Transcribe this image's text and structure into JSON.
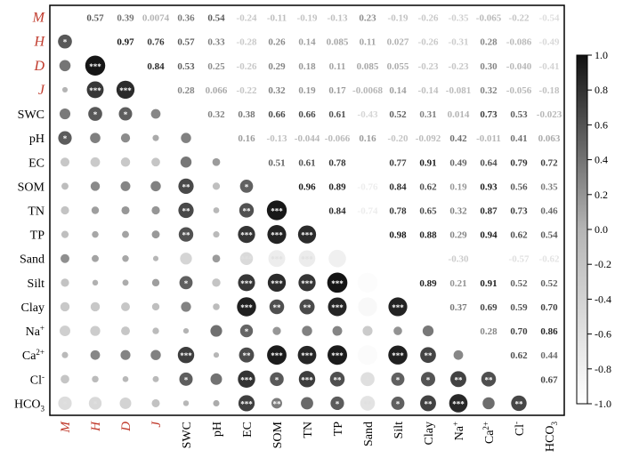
{
  "chart_data": {
    "type": "heatmap",
    "title": "",
    "xlabel": "",
    "ylabel": "",
    "variables": [
      "M",
      "H",
      "D",
      "J",
      "SWC",
      "pH",
      "EC",
      "SOM",
      "TN",
      "TP",
      "Sand",
      "Silt",
      "Clay",
      "Na+",
      "Ca2+",
      "Cl-",
      "HCO3"
    ],
    "highlight_variables": [
      "M",
      "H",
      "D",
      "J"
    ],
    "upper_triangle": "coefficients",
    "lower_triangle": "circles sized by correlation, stars mark significance",
    "coefficients_upper": [
      [
        "0.57",
        "0.39",
        "0.0074",
        "0.36",
        "0.54",
        "-0.24",
        "-0.11",
        "-0.19",
        "-0.13",
        "0.23",
        "-0.19",
        "-0.26",
        "-0.35",
        "-0.065",
        "-0.22",
        "-0.54"
      ],
      [
        "0.97",
        "0.76",
        "0.57",
        "0.33",
        "-0.28",
        "0.26",
        "0.14",
        "0.085",
        "0.11",
        "0.027",
        "-0.26",
        "-0.31",
        "0.28",
        "-0.086",
        "-0.49"
      ],
      [
        "0.84",
        "0.53",
        "0.25",
        "-0.26",
        "0.29",
        "0.18",
        "0.11",
        "0.085",
        "0.055",
        "-0.23",
        "-0.23",
        "0.30",
        "-0.040",
        "-0.41"
      ],
      [
        "0.28",
        "0.066",
        "-0.22",
        "0.32",
        "0.19",
        "0.17",
        "-0.0068",
        "0.14",
        "-0.14",
        "-0.081",
        "0.32",
        "-0.056",
        "-0.18"
      ],
      [
        "0.32",
        "0.38",
        "0.66",
        "0.66",
        "0.61",
        "-0.43",
        "0.52",
        "0.31",
        "0.014",
        "0.73",
        "0.53",
        "-0.023"
      ],
      [
        "0.16",
        "-0.13",
        "-0.044",
        "-0.066",
        "0.16",
        "-0.20",
        "-0.092",
        "0.42",
        "-0.011",
        "0.41",
        "0.063"
      ],
      [
        "0.51",
        "0.61",
        "0.78",
        "",
        "0.77",
        "0.91",
        "0.49",
        "0.64",
        "0.79",
        "0.72"
      ],
      [
        "0.96",
        "0.89",
        "-0.76",
        "0.84",
        "0.62",
        "0.19",
        "0.93",
        "0.56",
        "0.35"
      ],
      [
        "0.84",
        "-0.74",
        "0.78",
        "0.65",
        "0.32",
        "0.87",
        "0.73",
        "0.46"
      ],
      [
        "",
        "0.98",
        "0.88",
        "0.29",
        "0.94",
        "0.62",
        "0.54"
      ],
      [
        "",
        "",
        "-0.30",
        "",
        "-0.57",
        "-0.62"
      ],
      [
        "0.89",
        "0.21",
        "0.91",
        "0.52",
        "0.52"
      ],
      [
        "0.37",
        "0.69",
        "0.59",
        "0.70"
      ],
      [
        "0.28",
        "0.70",
        "0.86"
      ],
      [
        "0.62",
        "0.44"
      ],
      [
        "0.67"
      ]
    ],
    "significance_lower": [
      [],
      [
        "*"
      ],
      [
        "",
        "***"
      ],
      [
        "",
        "***",
        "***"
      ],
      [
        "",
        "*",
        "*",
        ""
      ],
      [
        "*",
        "",
        "",
        "",
        ""
      ],
      [
        "",
        "",
        "",
        "",
        "",
        ""
      ],
      [
        "",
        "",
        "",
        "",
        "**",
        "",
        "*"
      ],
      [
        "",
        "",
        "",
        "",
        "**",
        "",
        "**",
        "***"
      ],
      [
        "",
        "",
        "",
        "",
        "**",
        "",
        "***",
        "***",
        "***"
      ],
      [
        "",
        "",
        "",
        "",
        "",
        "",
        "***",
        "***",
        "***",
        ""
      ],
      [
        "",
        "",
        "",
        "",
        "*",
        "",
        "***",
        "***",
        "***",
        "***",
        ""
      ],
      [
        "",
        "",
        "",
        "",
        "",
        "",
        "***",
        "**",
        "**",
        "***",
        "",
        "***"
      ],
      [
        "",
        "",
        "",
        "",
        "",
        "",
        "*",
        "",
        "",
        "",
        "",
        "",
        ""
      ],
      [
        "",
        "",
        "",
        "",
        "***",
        "",
        "**",
        "***",
        "***",
        "***",
        "",
        "***",
        "**",
        ""
      ],
      [
        "",
        "",
        "",
        "",
        "*",
        "",
        "***",
        "*",
        "***",
        "**",
        "*",
        "*",
        "*",
        "**",
        "**"
      ],
      [
        "*",
        "*",
        "",
        "",
        "",
        "",
        "***",
        "**",
        "",
        "*",
        "**",
        "*",
        "**",
        "***",
        "",
        "**"
      ]
    ],
    "colorbar": {
      "range": [
        -1.0,
        1.0
      ],
      "ticks": [
        "1.0",
        "0.8",
        "0.6",
        "0.4",
        "0.2",
        "0.0",
        "-0.2",
        "-0.4",
        "-0.6",
        "-0.8",
        "-1.0"
      ],
      "colors": {
        "high": "#111111",
        "mid": "#b5b5b5",
        "low": "#ffffff"
      }
    },
    "colors": {
      "highlight_label": "#c0392b",
      "default_label": "#000000"
    }
  }
}
